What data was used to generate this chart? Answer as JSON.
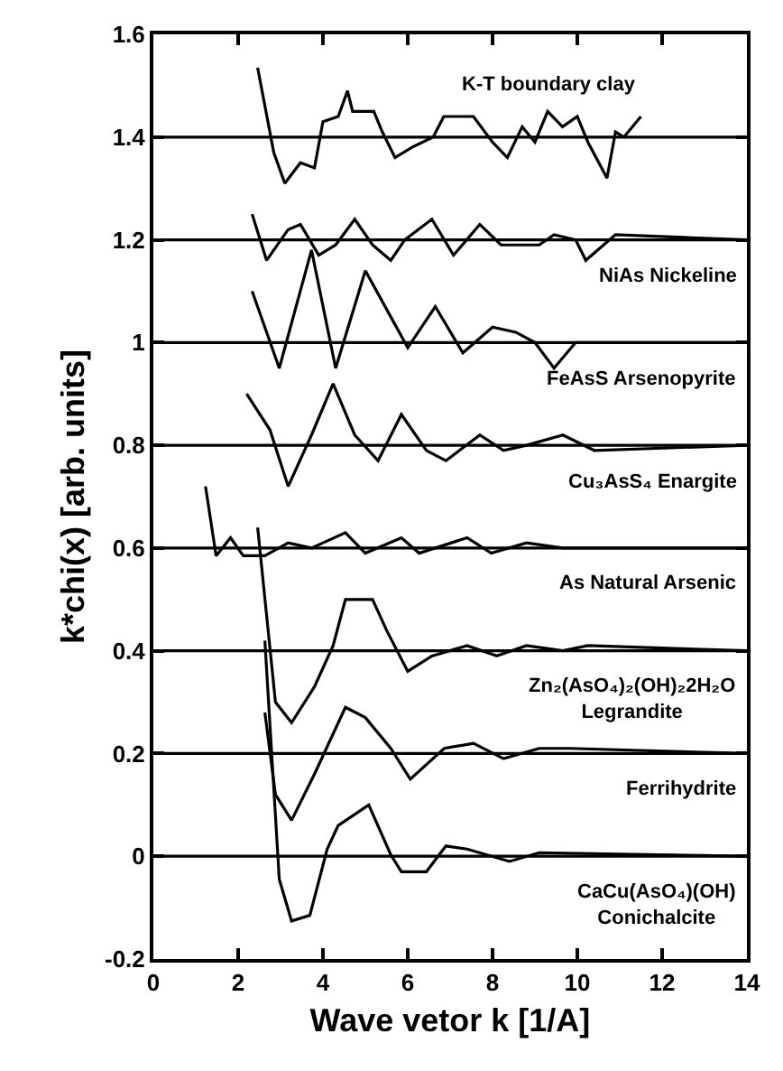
{
  "chart_data": {
    "type": "line",
    "xlabel": "Wave vetor k [1/A]",
    "ylabel": "k*chi(x) [arb. units]",
    "xlim": [
      0,
      14
    ],
    "xticks": [
      0,
      2,
      4,
      6,
      8,
      10,
      12,
      14
    ],
    "ylim": [
      -0.2,
      1.6
    ],
    "yticks": [
      -0.2,
      0,
      0.2,
      0.4,
      0.6,
      0.8,
      1,
      1.2,
      1.4,
      1.6
    ],
    "grid": false,
    "legend": false,
    "marker": "none",
    "line_style": "solid",
    "ref_lines": [
      {
        "axis": "y",
        "value": 0,
        "color": "#000000"
      },
      {
        "axis": "y",
        "value": 0.2,
        "color": "#000000"
      },
      {
        "axis": "y",
        "value": 0.4,
        "color": "#000000"
      },
      {
        "axis": "y",
        "value": 0.6,
        "color": "#000000"
      },
      {
        "axis": "y",
        "value": 0.8,
        "color": "#000000"
      },
      {
        "axis": "y",
        "value": 1,
        "color": "#000000"
      },
      {
        "axis": "y",
        "value": 1.2,
        "color": "#000000"
      },
      {
        "axis": "y",
        "value": 1.4,
        "color": "#000000"
      }
    ],
    "series": [
      {
        "name": "K-T boundary clay",
        "color": "#000000",
        "x": [
          2.46,
          2.84,
          3.1,
          3.47,
          3.8,
          4.0,
          4.36,
          4.58,
          4.7,
          5.2,
          5.4,
          5.7,
          6.1,
          6.6,
          6.85,
          7.3,
          7.55,
          8.0,
          8.35,
          8.7,
          9.0,
          9.3,
          9.65,
          10.0,
          10.25,
          10.7,
          10.9,
          11.1,
          11.5
        ],
        "values": [
          1.535,
          1.37,
          1.31,
          1.35,
          1.34,
          1.43,
          1.44,
          1.49,
          1.45,
          1.45,
          1.41,
          1.36,
          1.38,
          1.4,
          1.44,
          1.44,
          1.44,
          1.39,
          1.36,
          1.42,
          1.39,
          1.45,
          1.42,
          1.44,
          1.39,
          1.32,
          1.41,
          1.4,
          1.44
        ]
      },
      {
        "name": "NiAs Nickeline",
        "color": "#000000",
        "x": [
          2.33,
          2.67,
          3.18,
          3.47,
          3.9,
          4.3,
          4.75,
          5.17,
          5.6,
          5.93,
          6.57,
          7.08,
          7.7,
          8.2,
          8.7,
          9.1,
          9.45,
          9.96,
          10.2,
          10.9,
          14
        ],
        "values": [
          1.25,
          1.16,
          1.22,
          1.23,
          1.17,
          1.19,
          1.24,
          1.19,
          1.16,
          1.2,
          1.24,
          1.17,
          1.23,
          1.19,
          1.19,
          1.19,
          1.21,
          1.2,
          1.16,
          1.21,
          1.2
        ]
      },
      {
        "name": "FeAsS Arsenopyrite",
        "color": "#000000",
        "x": [
          2.33,
          2.97,
          3.73,
          4.3,
          5.0,
          5.6,
          6.0,
          6.65,
          7.3,
          8.0,
          8.55,
          9.0,
          9.45,
          9.96,
          14
        ],
        "values": [
          1.1,
          0.95,
          1.18,
          0.95,
          1.14,
          1.05,
          0.99,
          1.07,
          0.98,
          1.03,
          1.02,
          1.0,
          0.95,
          1.0,
          1.0
        ]
      },
      {
        "name": "Cu₃AsS₄ Enargite",
        "color": "#000000",
        "x": [
          2.2,
          2.75,
          3.18,
          3.73,
          4.24,
          4.75,
          5.3,
          5.85,
          6.44,
          6.9,
          7.7,
          8.26,
          8.8,
          9.66,
          10.4,
          14
        ],
        "values": [
          0.9,
          0.83,
          0.72,
          0.82,
          0.92,
          0.82,
          0.77,
          0.86,
          0.79,
          0.77,
          0.82,
          0.79,
          0.8,
          0.82,
          0.79,
          0.8
        ]
      },
      {
        "name": "As Natural Arsenic",
        "color": "#000000",
        "x": [
          1.23,
          1.48,
          1.82,
          2.12,
          2.63,
          3.18,
          3.73,
          4.53,
          5.0,
          5.85,
          6.27,
          7.4,
          7.97,
          8.8,
          9.66,
          14
        ],
        "values": [
          0.72,
          0.585,
          0.62,
          0.585,
          0.585,
          0.61,
          0.6,
          0.63,
          0.59,
          0.62,
          0.59,
          0.62,
          0.59,
          0.61,
          0.6,
          0.6
        ]
      },
      {
        "name": "Zn₂(AsO₄)₂(OH)₂2H₂O\nLegrandite",
        "color": "#000000",
        "x": [
          2.46,
          2.88,
          3.26,
          3.8,
          4.24,
          4.53,
          5.17,
          5.5,
          6.0,
          6.57,
          7.4,
          8.1,
          8.8,
          9.66,
          10.25,
          14
        ],
        "values": [
          0.64,
          0.3,
          0.26,
          0.33,
          0.41,
          0.5,
          0.5,
          0.44,
          0.36,
          0.39,
          0.41,
          0.39,
          0.41,
          0.4,
          0.41,
          0.4
        ]
      },
      {
        "name": "Ferrihydrite",
        "color": "#000000",
        "x": [
          2.63,
          2.88,
          3.26,
          3.8,
          4.53,
          5.0,
          5.6,
          6.06,
          6.86,
          7.55,
          8.26,
          9.1,
          9.83,
          14
        ],
        "values": [
          0.28,
          0.12,
          0.07,
          0.16,
          0.29,
          0.27,
          0.21,
          0.15,
          0.21,
          0.22,
          0.19,
          0.21,
          0.21,
          0.2
        ]
      },
      {
        "name": "CaCu(AsO₄)(OH)\nConichalcite",
        "color": "#000000",
        "x": [
          2.63,
          2.97,
          3.26,
          3.69,
          4.1,
          4.36,
          5.08,
          5.6,
          5.85,
          6.44,
          6.9,
          7.4,
          8.4,
          9.1,
          14
        ],
        "values": [
          0.42,
          -0.045,
          -0.126,
          -0.115,
          0.014,
          0.06,
          0.1,
          0.003,
          -0.03,
          -0.03,
          0.02,
          0.014,
          -0.01,
          0.007,
          0
        ]
      }
    ]
  }
}
